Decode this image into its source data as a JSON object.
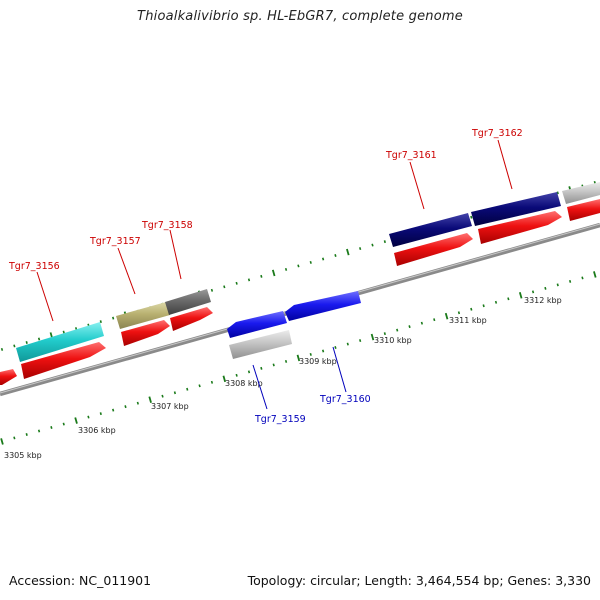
{
  "title": "Thioalkalivibrio sp. HL-EbGR7, complete genome",
  "footer": {
    "accession_label": "Accession:",
    "accession": "NC_011901",
    "topology_label": "Topology:",
    "topology": "circular",
    "length_label": "Length:",
    "length": "3,464,554 bp",
    "genes_label": "Genes:",
    "genes": "3,330"
  },
  "scale_labels": [
    "3305 kbp",
    "3306 kbp",
    "3307 kbp",
    "3308 kbp",
    "3309 kbp",
    "3310 kbp",
    "3311 kbp",
    "3312 kbp"
  ],
  "gene_labels": [
    {
      "name": "Tgr7_3156",
      "strand": "forward"
    },
    {
      "name": "Tgr7_3157",
      "strand": "forward"
    },
    {
      "name": "Tgr7_3158",
      "strand": "forward"
    },
    {
      "name": "Tgr7_3159",
      "strand": "reverse"
    },
    {
      "name": "Tgr7_3160",
      "strand": "reverse"
    },
    {
      "name": "Tgr7_3161",
      "strand": "forward"
    },
    {
      "name": "Tgr7_3162",
      "strand": "forward"
    }
  ],
  "colors": {
    "forward_label": "#cc0000",
    "reverse_label": "#0000bb",
    "tick": "#1a7a1a",
    "backbone": "#8a8a8a",
    "cds": "#ee1111",
    "cyan_gene": "#22cccc",
    "olive_gene": "#b8b070",
    "dark_gray_gene": "#6a6a6a",
    "navy_gene": "#0a0a78",
    "blue_gene": "#1a1aee",
    "light_gray_gene": "#c4c4c4"
  }
}
